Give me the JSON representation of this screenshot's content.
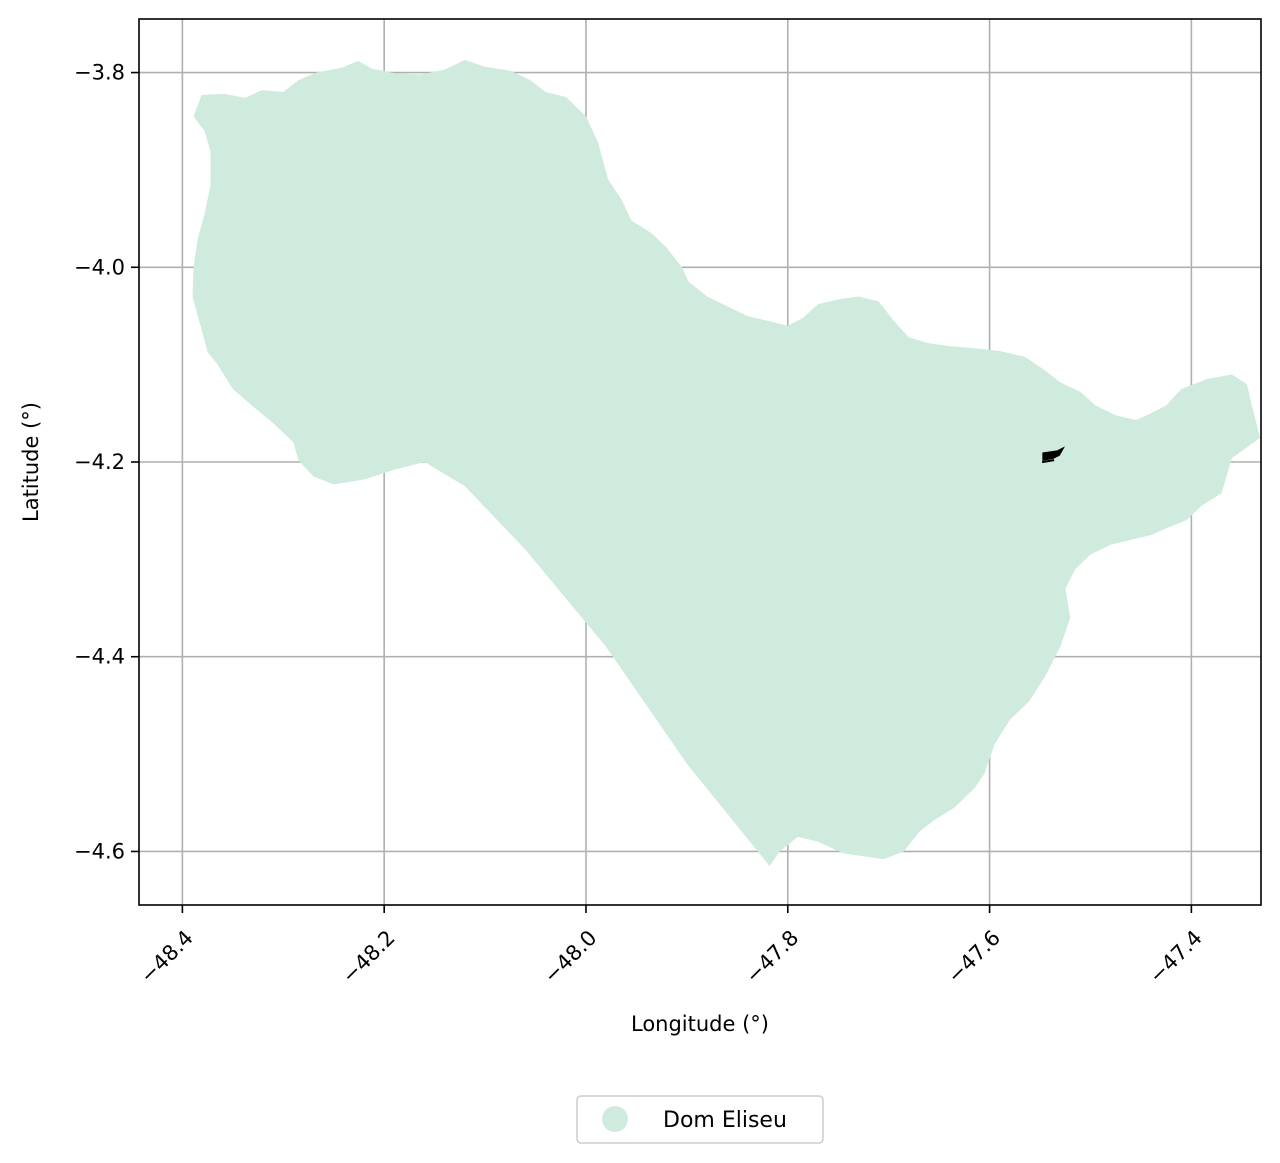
{
  "chart_data": {
    "type": "map",
    "title": "",
    "xlabel": "Longitude (°)",
    "ylabel": "Latitude (°)",
    "xlim": [
      -48.443,
      -47.331
    ],
    "ylim": [
      -4.655,
      -3.745
    ],
    "xticks": [
      -48.4,
      -48.2,
      -48.0,
      -47.8,
      -47.6,
      -47.4
    ],
    "xtick_labels": [
      "−48.4",
      "−48.2",
      "−48.0",
      "−47.8",
      "−47.6",
      "−47.4"
    ],
    "yticks": [
      -3.8,
      -4.0,
      -4.2,
      -4.4,
      -4.6
    ],
    "ytick_labels": [
      "−3.8",
      "−4.0",
      "−4.2",
      "−4.4",
      "−4.6"
    ],
    "grid": true,
    "legend": {
      "placement": "bottom-center",
      "entries": [
        {
          "label": "Dom Eliseu",
          "color": "#cfebdd"
        }
      ]
    },
    "regions": [
      {
        "name": "Dom Eliseu",
        "color": "#cfebdd",
        "boundary": [
          [
            -48.389,
            -3.845
          ],
          [
            -48.381,
            -3.823
          ],
          [
            -48.358,
            -3.822
          ],
          [
            -48.338,
            -3.826
          ],
          [
            -48.321,
            -3.818
          ],
          [
            -48.3,
            -3.82
          ],
          [
            -48.285,
            -3.808
          ],
          [
            -48.267,
            -3.8
          ],
          [
            -48.242,
            -3.795
          ],
          [
            -48.226,
            -3.788
          ],
          [
            -48.212,
            -3.796
          ],
          [
            -48.188,
            -3.801
          ],
          [
            -48.164,
            -3.802
          ],
          [
            -48.14,
            -3.797
          ],
          [
            -48.12,
            -3.787
          ],
          [
            -48.1,
            -3.794
          ],
          [
            -48.075,
            -3.798
          ],
          [
            -48.055,
            -3.808
          ],
          [
            -48.04,
            -3.82
          ],
          [
            -48.02,
            -3.825
          ],
          [
            -48.0,
            -3.845
          ],
          [
            -47.988,
            -3.872
          ],
          [
            -47.978,
            -3.91
          ],
          [
            -47.965,
            -3.93
          ],
          [
            -47.955,
            -3.952
          ],
          [
            -47.935,
            -3.965
          ],
          [
            -47.92,
            -3.98
          ],
          [
            -47.905,
            -4.0
          ],
          [
            -47.898,
            -4.015
          ],
          [
            -47.88,
            -4.03
          ],
          [
            -47.86,
            -4.04
          ],
          [
            -47.84,
            -4.05
          ],
          [
            -47.82,
            -4.055
          ],
          [
            -47.8,
            -4.06
          ],
          [
            -47.785,
            -4.052
          ],
          [
            -47.77,
            -4.038
          ],
          [
            -47.75,
            -4.033
          ],
          [
            -47.73,
            -4.03
          ],
          [
            -47.71,
            -4.035
          ],
          [
            -47.695,
            -4.055
          ],
          [
            -47.68,
            -4.072
          ],
          [
            -47.66,
            -4.078
          ],
          [
            -47.64,
            -4.081
          ],
          [
            -47.615,
            -4.083
          ],
          [
            -47.59,
            -4.086
          ],
          [
            -47.565,
            -4.092
          ],
          [
            -47.545,
            -4.106
          ],
          [
            -47.53,
            -4.118
          ],
          [
            -47.51,
            -4.128
          ],
          [
            -47.495,
            -4.142
          ],
          [
            -47.475,
            -4.152
          ],
          [
            -47.455,
            -4.157
          ],
          [
            -47.44,
            -4.15
          ],
          [
            -47.425,
            -4.142
          ],
          [
            -47.41,
            -4.125
          ],
          [
            -47.385,
            -4.115
          ],
          [
            -47.36,
            -4.11
          ],
          [
            -47.345,
            -4.12
          ],
          [
            -47.34,
            -4.142
          ],
          [
            -47.332,
            -4.175
          ],
          [
            -47.345,
            -4.185
          ],
          [
            -47.36,
            -4.196
          ],
          [
            -47.37,
            -4.232
          ],
          [
            -47.39,
            -4.245
          ],
          [
            -47.405,
            -4.26
          ],
          [
            -47.425,
            -4.268
          ],
          [
            -47.44,
            -4.275
          ],
          [
            -47.46,
            -4.28
          ],
          [
            -47.48,
            -4.285
          ],
          [
            -47.5,
            -4.295
          ],
          [
            -47.515,
            -4.31
          ],
          [
            -47.525,
            -4.33
          ],
          [
            -47.52,
            -4.36
          ],
          [
            -47.53,
            -4.39
          ],
          [
            -47.545,
            -4.42
          ],
          [
            -47.56,
            -4.445
          ],
          [
            -47.58,
            -4.465
          ],
          [
            -47.595,
            -4.49
          ],
          [
            -47.605,
            -4.52
          ],
          [
            -47.615,
            -4.535
          ],
          [
            -47.635,
            -4.555
          ],
          [
            -47.655,
            -4.568
          ],
          [
            -47.67,
            -4.58
          ],
          [
            -47.685,
            -4.6
          ],
          [
            -47.705,
            -4.608
          ],
          [
            -47.725,
            -4.605
          ],
          [
            -47.745,
            -4.602
          ],
          [
            -47.77,
            -4.59
          ],
          [
            -47.79,
            -4.585
          ],
          [
            -47.808,
            -4.6
          ],
          [
            -47.818,
            -4.615
          ],
          [
            -47.9,
            -4.51
          ],
          [
            -47.98,
            -4.39
          ],
          [
            -48.06,
            -4.29
          ],
          [
            -48.12,
            -4.225
          ],
          [
            -48.16,
            -4.2
          ],
          [
            -48.19,
            -4.208
          ],
          [
            -48.22,
            -4.218
          ],
          [
            -48.25,
            -4.223
          ],
          [
            -48.27,
            -4.215
          ],
          [
            -48.285,
            -4.198
          ],
          [
            -48.29,
            -4.18
          ],
          [
            -48.31,
            -4.16
          ],
          [
            -48.33,
            -4.143
          ],
          [
            -48.35,
            -4.125
          ],
          [
            -48.365,
            -4.1
          ],
          [
            -48.375,
            -4.087
          ],
          [
            -48.382,
            -4.06
          ],
          [
            -48.39,
            -4.03
          ],
          [
            -48.389,
            -4.0
          ],
          [
            -48.385,
            -3.972
          ],
          [
            -48.378,
            -3.945
          ],
          [
            -48.372,
            -3.915
          ],
          [
            -48.372,
            -3.882
          ],
          [
            -48.378,
            -3.86
          ],
          [
            -48.389,
            -3.845
          ]
        ]
      }
    ],
    "markers": [
      {
        "name": "point-of-interest",
        "color": "#000000",
        "lon": -47.54,
        "lat": -4.195
      }
    ]
  }
}
